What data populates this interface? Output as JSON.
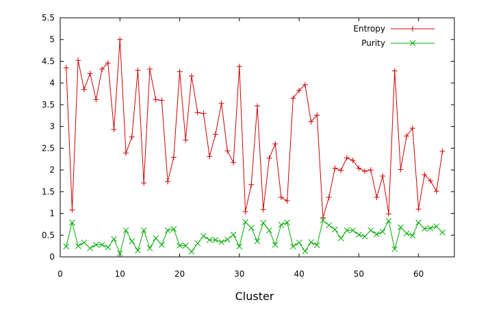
{
  "chart_data": {
    "type": "line",
    "title": "",
    "xlabel": "Cluster",
    "ylabel": "",
    "xlim": [
      0,
      66
    ],
    "ylim": [
      0,
      5.5
    ],
    "xticks": [
      0,
      10,
      20,
      30,
      40,
      50,
      60
    ],
    "yticks": [
      0,
      0.5,
      1,
      1.5,
      2,
      2.5,
      3,
      3.5,
      4,
      4.5,
      5,
      5.5
    ],
    "xtick_labels": [
      "0",
      "10",
      "20",
      "30",
      "40",
      "50",
      "60"
    ],
    "ytick_labels": [
      "0",
      "0.5",
      "1",
      "1.5",
      "2",
      "2.5",
      "3",
      "3.5",
      "4",
      "4.5",
      "5",
      "5.5"
    ],
    "grid": false,
    "legend_position": "top-right",
    "x": [
      1,
      2,
      3,
      4,
      5,
      6,
      7,
      8,
      9,
      10,
      11,
      12,
      13,
      14,
      15,
      16,
      17,
      18,
      19,
      20,
      21,
      22,
      23,
      24,
      25,
      26,
      27,
      28,
      29,
      30,
      31,
      32,
      33,
      34,
      35,
      36,
      37,
      38,
      39,
      40,
      41,
      42,
      43,
      44,
      45,
      46,
      47,
      48,
      49,
      50,
      51,
      52,
      53,
      54,
      55,
      56,
      57,
      58,
      59,
      60,
      61,
      62,
      63,
      64
    ],
    "series": [
      {
        "name": "Entropy",
        "color": "#cc0000",
        "marker": "plus",
        "values": [
          4.35,
          1.08,
          4.52,
          3.85,
          4.22,
          3.62,
          4.32,
          4.46,
          2.93,
          5.0,
          2.39,
          2.76,
          4.29,
          1.7,
          4.32,
          3.62,
          3.6,
          1.73,
          2.29,
          4.26,
          2.69,
          4.16,
          3.32,
          3.3,
          2.31,
          2.82,
          3.53,
          2.44,
          2.17,
          4.38,
          1.04,
          1.66,
          3.47,
          1.09,
          2.27,
          2.6,
          1.37,
          1.29,
          3.65,
          3.83,
          3.96,
          3.11,
          3.26,
          0.9,
          1.37,
          2.04,
          1.99,
          2.28,
          2.22,
          2.04,
          1.97,
          2.0,
          1.37,
          1.86,
          0.99,
          4.28,
          2.01,
          2.78,
          2.96,
          1.1,
          1.89,
          1.75,
          1.51,
          2.43
        ]
      },
      {
        "name": "Purity",
        "color": "#00aa00",
        "marker": "x",
        "values": [
          0.24,
          0.79,
          0.25,
          0.33,
          0.2,
          0.28,
          0.28,
          0.22,
          0.41,
          0.08,
          0.61,
          0.36,
          0.15,
          0.61,
          0.2,
          0.43,
          0.28,
          0.61,
          0.64,
          0.26,
          0.26,
          0.12,
          0.31,
          0.48,
          0.39,
          0.39,
          0.34,
          0.4,
          0.51,
          0.24,
          0.8,
          0.67,
          0.36,
          0.78,
          0.61,
          0.28,
          0.74,
          0.79,
          0.24,
          0.33,
          0.13,
          0.34,
          0.27,
          0.84,
          0.73,
          0.63,
          0.43,
          0.61,
          0.61,
          0.51,
          0.47,
          0.61,
          0.52,
          0.58,
          0.83,
          0.18,
          0.68,
          0.54,
          0.49,
          0.79,
          0.65,
          0.66,
          0.7,
          0.56
        ]
      }
    ]
  }
}
